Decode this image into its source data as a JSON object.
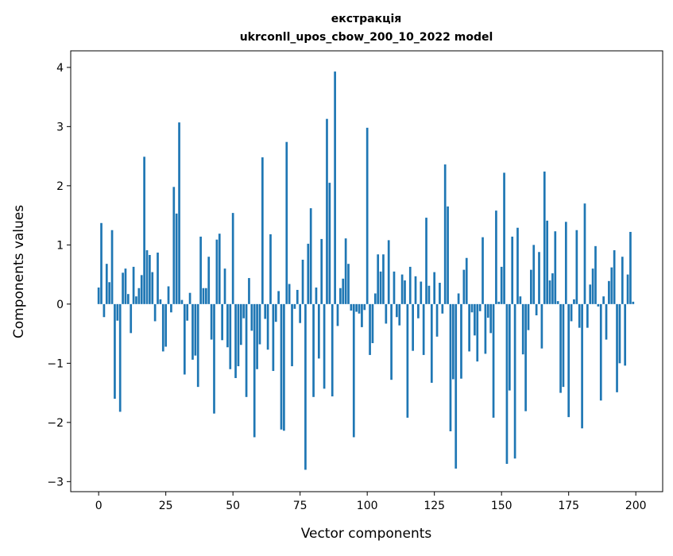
{
  "chart_data": {
    "type": "bar",
    "title": "екстракція",
    "subtitle": "ukrconll_upos_cbow_200_10_2022 model",
    "xlabel": "Vector components",
    "ylabel": "Components values",
    "xlim": [
      -10.4,
      210
    ],
    "ylim": [
      -3.17,
      4.28
    ],
    "xticks": [
      0,
      25,
      50,
      75,
      100,
      125,
      150,
      175,
      200
    ],
    "xtick_labels": [
      "0",
      "25",
      "50",
      "75",
      "100",
      "125",
      "150",
      "175",
      "200"
    ],
    "yticks": [
      -3,
      -2,
      -1,
      0,
      1,
      2,
      3,
      4
    ],
    "ytick_labels": [
      "−3",
      "−2",
      "−1",
      "0",
      "1",
      "2",
      "3",
      "4"
    ],
    "grid": false,
    "bar_color": "#1f77b4",
    "values": [
      0.28,
      1.37,
      -0.22,
      0.68,
      0.37,
      1.25,
      -1.6,
      -0.28,
      -1.82,
      0.53,
      0.6,
      0.17,
      -0.49,
      0.63,
      0.13,
      0.27,
      0.49,
      2.49,
      0.91,
      0.83,
      0.54,
      -0.29,
      0.87,
      0.08,
      -0.8,
      -0.72,
      0.3,
      -0.14,
      1.98,
      1.53,
      3.07,
      0.07,
      -1.19,
      -0.28,
      0.19,
      -0.94,
      -0.87,
      -1.4,
      1.14,
      0.27,
      0.27,
      0.8,
      -0.6,
      -1.85,
      1.09,
      1.19,
      -0.61,
      0.6,
      -0.73,
      -1.1,
      1.54,
      -1.25,
      -1.05,
      -0.69,
      -0.24,
      -1.57,
      0.44,
      -0.45,
      -2.25,
      -1.1,
      -0.68,
      2.48,
      -0.25,
      -0.77,
      1.18,
      -1.13,
      -0.3,
      0.22,
      -2.12,
      -2.14,
      2.74,
      0.34,
      -1.05,
      -0.08,
      0.24,
      -0.32,
      0.75,
      -2.8,
      1.02,
      1.62,
      -1.57,
      0.28,
      -0.92,
      1.1,
      -1.43,
      3.13,
      2.05,
      -1.56,
      3.93,
      -0.37,
      0.27,
      0.43,
      1.11,
      0.68,
      -0.11,
      -2.25,
      -0.13,
      -0.16,
      -0.39,
      -0.1,
      2.98,
      -0.86,
      -0.66,
      0.18,
      0.84,
      0.55,
      0.84,
      -0.33,
      1.08,
      -1.28,
      0.55,
      -0.22,
      -0.36,
      0.5,
      0.4,
      -1.92,
      0.63,
      -0.79,
      0.47,
      -0.24,
      0.38,
      -0.86,
      1.46,
      0.31,
      -1.33,
      0.54,
      -0.55,
      0.36,
      -0.16,
      2.36,
      1.65,
      -2.15,
      -1.27,
      -2.78,
      0.18,
      -1.26,
      0.58,
      0.78,
      -0.8,
      -0.14,
      -0.53,
      -0.97,
      -0.12,
      1.13,
      -0.84,
      -0.23,
      -0.49,
      -1.92,
      1.58,
      0.04,
      0.63,
      2.22,
      -2.7,
      -1.46,
      1.14,
      -2.61,
      1.29,
      0.13,
      -0.85,
      -1.81,
      -0.44,
      0.58,
      1.0,
      -0.19,
      0.88,
      -0.75,
      2.24,
      1.41,
      0.4,
      0.52,
      1.23,
      0.05,
      -1.5,
      -1.4,
      1.39,
      -1.91,
      -0.29,
      0.08,
      1.25,
      -0.4,
      -2.1,
      1.7,
      -0.4,
      0.33,
      0.6,
      0.98,
      -0.04,
      -1.63,
      0.13,
      -0.6,
      0.39,
      0.62,
      0.91,
      -1.49,
      -1.0,
      0.8,
      -1.04,
      0.5,
      1.22,
      0.04
    ]
  }
}
